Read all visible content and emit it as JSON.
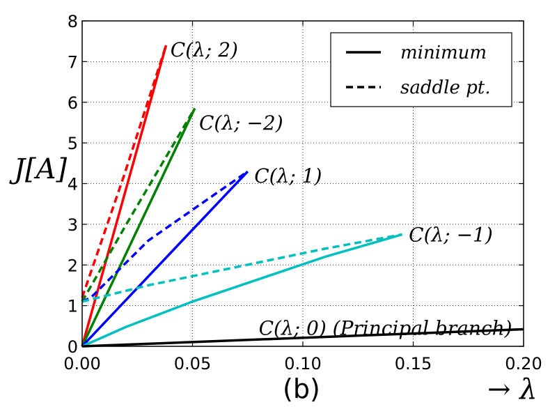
{
  "chart_data": {
    "type": "line",
    "caption": "(b)",
    "xlabel": "→ λ",
    "ylabel": "J[A]",
    "xlim": [
      0.0,
      0.2
    ],
    "ylim": [
      0,
      8
    ],
    "xticks": [
      0.0,
      0.05,
      0.1,
      0.15,
      0.2
    ],
    "xtick_labels": [
      "0.00",
      "0.05",
      "0.10",
      "0.15",
      "0.20"
    ],
    "yticks": [
      0,
      1,
      2,
      3,
      4,
      5,
      6,
      7,
      8
    ],
    "ytick_labels": [
      "0",
      "1",
      "2",
      "3",
      "4",
      "5",
      "6",
      "7",
      "8"
    ],
    "grid": true,
    "legend": {
      "position": "top-right",
      "entries": [
        {
          "label": "minimum",
          "style": "solid"
        },
        {
          "label": "saddle pt.",
          "style": "dashed"
        }
      ]
    },
    "series": [
      {
        "name": "C(λ; 2) minimum",
        "color": "#ff0000",
        "style": "solid",
        "x": [
          0.0,
          0.038
        ],
        "y": [
          0.0,
          7.4
        ]
      },
      {
        "name": "C(λ; 2) saddle",
        "color": "#ff0000",
        "style": "dashed",
        "x": [
          0.0,
          0.019,
          0.038
        ],
        "y": [
          1.2,
          4.2,
          7.4
        ]
      },
      {
        "name": "C(λ; -2) minimum",
        "color": "#008000",
        "style": "solid",
        "x": [
          0.0,
          0.051
        ],
        "y": [
          0.0,
          5.85
        ]
      },
      {
        "name": "C(λ; -2) saddle",
        "color": "#008000",
        "style": "dashed",
        "x": [
          0.0,
          0.02,
          0.051
        ],
        "y": [
          1.1,
          3.0,
          5.85
        ]
      },
      {
        "name": "C(λ; 1) minimum",
        "color": "#0000ff",
        "style": "solid",
        "x": [
          0.0,
          0.075
        ],
        "y": [
          0.0,
          4.3
        ]
      },
      {
        "name": "C(λ; 1) saddle",
        "color": "#0000ff",
        "style": "dashed",
        "x": [
          0.0,
          0.004,
          0.03,
          0.075
        ],
        "y": [
          1.1,
          1.2,
          2.6,
          4.3
        ]
      },
      {
        "name": "C(λ; -1) minimum",
        "color": "#00bfbf",
        "style": "solid",
        "x": [
          0.0,
          0.02,
          0.05,
          0.08,
          0.11,
          0.145
        ],
        "y": [
          0.0,
          0.48,
          1.1,
          1.65,
          2.2,
          2.75
        ]
      },
      {
        "name": "C(λ; -1) saddle",
        "color": "#00bfbf",
        "style": "dashed",
        "x": [
          0.0,
          0.03,
          0.07,
          0.11,
          0.145
        ],
        "y": [
          1.1,
          1.5,
          1.95,
          2.4,
          2.75
        ]
      },
      {
        "name": "C(λ; 0) minimum",
        "color": "#000000",
        "style": "solid",
        "x": [
          0.0,
          0.2
        ],
        "y": [
          0.0,
          0.42
        ]
      }
    ],
    "annotations": [
      {
        "text": "C(λ; 2)",
        "x": 0.04,
        "y": 7.3
      },
      {
        "text": "C(λ; −2)",
        "x": 0.053,
        "y": 5.5
      },
      {
        "text": "C(λ; 1)",
        "x": 0.078,
        "y": 4.2
      },
      {
        "text": "C(λ; −1)",
        "x": 0.148,
        "y": 2.75
      },
      {
        "text": "C(λ; 0) (Principal branch)",
        "x": 0.08,
        "y": 0.45
      }
    ]
  }
}
